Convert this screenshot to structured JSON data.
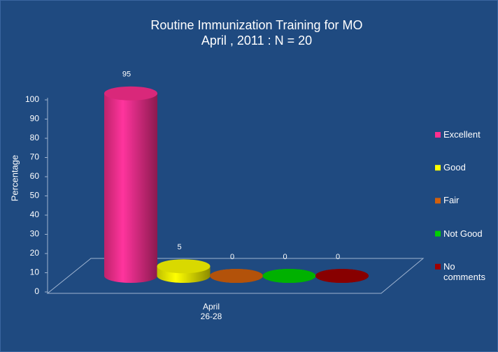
{
  "chart_data": {
    "type": "bar",
    "title": "Routine Immunization Training for MO",
    "subtitle": "April , 2011 : N = 20",
    "y_label": "Percentage",
    "categories": [
      "April\n26-28"
    ],
    "series": [
      {
        "name": "Excellent",
        "color": "#ff2f8f",
        "values": [
          95
        ]
      },
      {
        "name": "Good",
        "color": "#ffff00",
        "values": [
          5
        ]
      },
      {
        "name": "Fair",
        "color": "#d2600c",
        "values": [
          0
        ]
      },
      {
        "name": "Not Good",
        "color": "#00d000",
        "values": [
          0
        ]
      },
      {
        "name": "No comments",
        "color": "#a00000",
        "values": [
          0
        ]
      }
    ],
    "ylim": [
      0,
      100
    ],
    "yticks": [
      0,
      10,
      20,
      30,
      40,
      50,
      60,
      70,
      80,
      90,
      100
    ],
    "grid": false,
    "legend": "right"
  }
}
